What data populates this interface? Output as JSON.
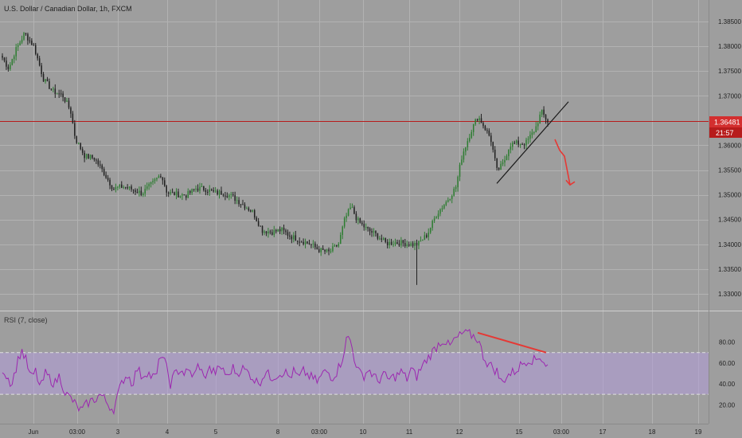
{
  "title": "U.S. Dollar / Canadian Dollar, 1h, FXCM",
  "colors": {
    "background": "#9e9e9e",
    "grid": "#b2b2b2",
    "up_candle": "#2e7d32",
    "down_candle": "#212121",
    "price_line": "#b71c1c",
    "price_label_bg": "#d32f2f",
    "rsi_line": "#9c27b0",
    "rsi_band": "#b39ddb",
    "annotation_red": "#e53935",
    "trendline": "#1a1a1a"
  },
  "price_axis": {
    "ticks": [
      "1.38500",
      "1.38000",
      "1.37500",
      "1.37000",
      "1.36000",
      "1.35500",
      "1.35000",
      "1.34500",
      "1.34000",
      "1.33500",
      "1.33000"
    ],
    "ylim": [
      1.3265,
      1.3908
    ],
    "current_price_label": "1.36481",
    "current_price_value": 1.36481,
    "countdown_label": "21:57"
  },
  "time_axis": {
    "labels": [
      "Jun",
      "03:00",
      "3",
      "4",
      "5",
      "8",
      "03:00",
      "10",
      "11",
      "12",
      "15",
      "03:00",
      "17",
      "18",
      "19"
    ]
  },
  "rsi": {
    "label": "RSI (7, close)",
    "ticks": [
      "80.00",
      "60.00",
      "40.00",
      "20.00"
    ],
    "ylim": [
      8,
      98
    ],
    "band": [
      30,
      70
    ]
  },
  "chart_data": [
    {
      "type": "candlestick",
      "title": "U.S. Dollar / Canadian Dollar, 1h, FXCM",
      "xlabel": "",
      "ylabel": "",
      "ylim": [
        1.3265,
        1.3908
      ],
      "grid": true,
      "close_path": [
        [
          0,
          1.3777
        ],
        [
          8,
          1.3755
        ],
        [
          16,
          1.379
        ],
        [
          28,
          1.3826
        ],
        [
          40,
          1.3799
        ],
        [
          52,
          1.3733
        ],
        [
          64,
          1.3709
        ],
        [
          76,
          1.3701
        ],
        [
          86,
          1.367
        ],
        [
          92,
          1.3614
        ],
        [
          104,
          1.3578
        ],
        [
          116,
          1.3574
        ],
        [
          128,
          1.3545
        ],
        [
          140,
          1.3512
        ],
        [
          152,
          1.3517
        ],
        [
          164,
          1.3511
        ],
        [
          176,
          1.3503
        ],
        [
          190,
          1.3524
        ],
        [
          200,
          1.3542
        ],
        [
          208,
          1.3504
        ],
        [
          220,
          1.3501
        ],
        [
          232,
          1.3499
        ],
        [
          244,
          1.3513
        ],
        [
          256,
          1.3512
        ],
        [
          268,
          1.3504
        ],
        [
          280,
          1.3504
        ],
        [
          292,
          1.3494
        ],
        [
          304,
          1.348
        ],
        [
          316,
          1.3465
        ],
        [
          328,
          1.3428
        ],
        [
          340,
          1.3425
        ],
        [
          352,
          1.3429
        ],
        [
          364,
          1.3416
        ],
        [
          376,
          1.3408
        ],
        [
          388,
          1.3401
        ],
        [
          400,
          1.3388
        ],
        [
          412,
          1.3384
        ],
        [
          424,
          1.34
        ],
        [
          432,
          1.3451
        ],
        [
          440,
          1.3476
        ],
        [
          448,
          1.3448
        ],
        [
          460,
          1.343
        ],
        [
          472,
          1.3419
        ],
        [
          484,
          1.3402
        ],
        [
          496,
          1.3404
        ],
        [
          508,
          1.3402
        ],
        [
          516,
          1.34
        ],
        [
          524,
          1.34
        ],
        [
          536,
          1.342
        ],
        [
          548,
          1.3462
        ],
        [
          560,
          1.3486
        ],
        [
          572,
          1.3515
        ],
        [
          580,
          1.358
        ],
        [
          592,
          1.3632
        ],
        [
          600,
          1.3659
        ],
        [
          608,
          1.3637
        ],
        [
          616,
          1.3614
        ],
        [
          624,
          1.3548
        ],
        [
          632,
          1.3563
        ],
        [
          640,
          1.3601
        ],
        [
          648,
          1.3604
        ],
        [
          660,
          1.3604
        ],
        [
          672,
          1.3632
        ],
        [
          680,
          1.3668
        ],
        [
          688,
          1.3648
        ]
      ],
      "rsi_path": [
        [
          0,
          55
        ],
        [
          6,
          47
        ],
        [
          12,
          40
        ],
        [
          18,
          58
        ],
        [
          24,
          73
        ],
        [
          30,
          62
        ],
        [
          36,
          45
        ],
        [
          42,
          52
        ],
        [
          48,
          35
        ],
        [
          54,
          50
        ],
        [
          60,
          45
        ],
        [
          66,
          40
        ],
        [
          72,
          48
        ],
        [
          80,
          30
        ],
        [
          88,
          25
        ],
        [
          94,
          18
        ],
        [
          100,
          14
        ],
        [
          108,
          22
        ],
        [
          116,
          25
        ],
        [
          124,
          30
        ],
        [
          132,
          22
        ],
        [
          140,
          15
        ],
        [
          146,
          30
        ],
        [
          152,
          44
        ],
        [
          158,
          49
        ],
        [
          164,
          40
        ],
        [
          170,
          55
        ],
        [
          176,
          47
        ],
        [
          182,
          52
        ],
        [
          188,
          47
        ],
        [
          194,
          46
        ],
        [
          200,
          70
        ],
        [
          206,
          58
        ],
        [
          212,
          40
        ],
        [
          218,
          50
        ],
        [
          224,
          54
        ],
        [
          230,
          50
        ],
        [
          236,
          52
        ],
        [
          242,
          47
        ],
        [
          248,
          60
        ],
        [
          254,
          45
        ],
        [
          260,
          55
        ],
        [
          266,
          51
        ],
        [
          272,
          53
        ],
        [
          278,
          56
        ],
        [
          284,
          45
        ],
        [
          290,
          56
        ],
        [
          296,
          50
        ],
        [
          302,
          55
        ],
        [
          308,
          52
        ],
        [
          314,
          48
        ],
        [
          320,
          42
        ],
        [
          326,
          43
        ],
        [
          332,
          52
        ],
        [
          338,
          46
        ],
        [
          344,
          48
        ],
        [
          350,
          50
        ],
        [
          356,
          52
        ],
        [
          362,
          46
        ],
        [
          368,
          52
        ],
        [
          374,
          45
        ],
        [
          380,
          52
        ],
        [
          386,
          48
        ],
        [
          392,
          45
        ],
        [
          398,
          42
        ],
        [
          404,
          50
        ],
        [
          410,
          52
        ],
        [
          416,
          46
        ],
        [
          422,
          52
        ],
        [
          428,
          62
        ],
        [
          434,
          82
        ],
        [
          438,
          85
        ],
        [
          444,
          65
        ],
        [
          450,
          50
        ],
        [
          456,
          48
        ],
        [
          462,
          54
        ],
        [
          468,
          48
        ],
        [
          474,
          42
        ],
        [
          480,
          50
        ],
        [
          486,
          44
        ],
        [
          492,
          46
        ],
        [
          498,
          48
        ],
        [
          504,
          52
        ],
        [
          510,
          44
        ],
        [
          516,
          55
        ],
        [
          522,
          46
        ],
        [
          528,
          55
        ],
        [
          534,
          62
        ],
        [
          540,
          68
        ],
        [
          546,
          74
        ],
        [
          552,
          80
        ],
        [
          558,
          82
        ],
        [
          564,
          75
        ],
        [
          570,
          82
        ],
        [
          576,
          85
        ],
        [
          582,
          89
        ],
        [
          588,
          88
        ],
        [
          594,
          86
        ],
        [
          600,
          83
        ],
        [
          606,
          68
        ],
        [
          612,
          60
        ],
        [
          618,
          56
        ],
        [
          624,
          52
        ],
        [
          630,
          40
        ],
        [
          636,
          48
        ],
        [
          642,
          50
        ],
        [
          648,
          53
        ],
        [
          654,
          58
        ],
        [
          660,
          62
        ],
        [
          666,
          64
        ],
        [
          672,
          62
        ],
        [
          678,
          67
        ],
        [
          684,
          60
        ],
        [
          688,
          57
        ]
      ],
      "price_trendline": [
        [
          148,
          1.3523
        ],
        [
          298,
          1.3688
        ]
      ],
      "price_arrow": [
        [
          0,
          1.3612
        ],
        [
          6,
          1.359
        ],
        [
          12,
          1.3578
        ],
        [
          18,
          1.352
        ]
      ],
      "rsi_trendline": [
        [
          154,
          89
        ],
        [
          218,
          70
        ]
      ]
    }
  ]
}
